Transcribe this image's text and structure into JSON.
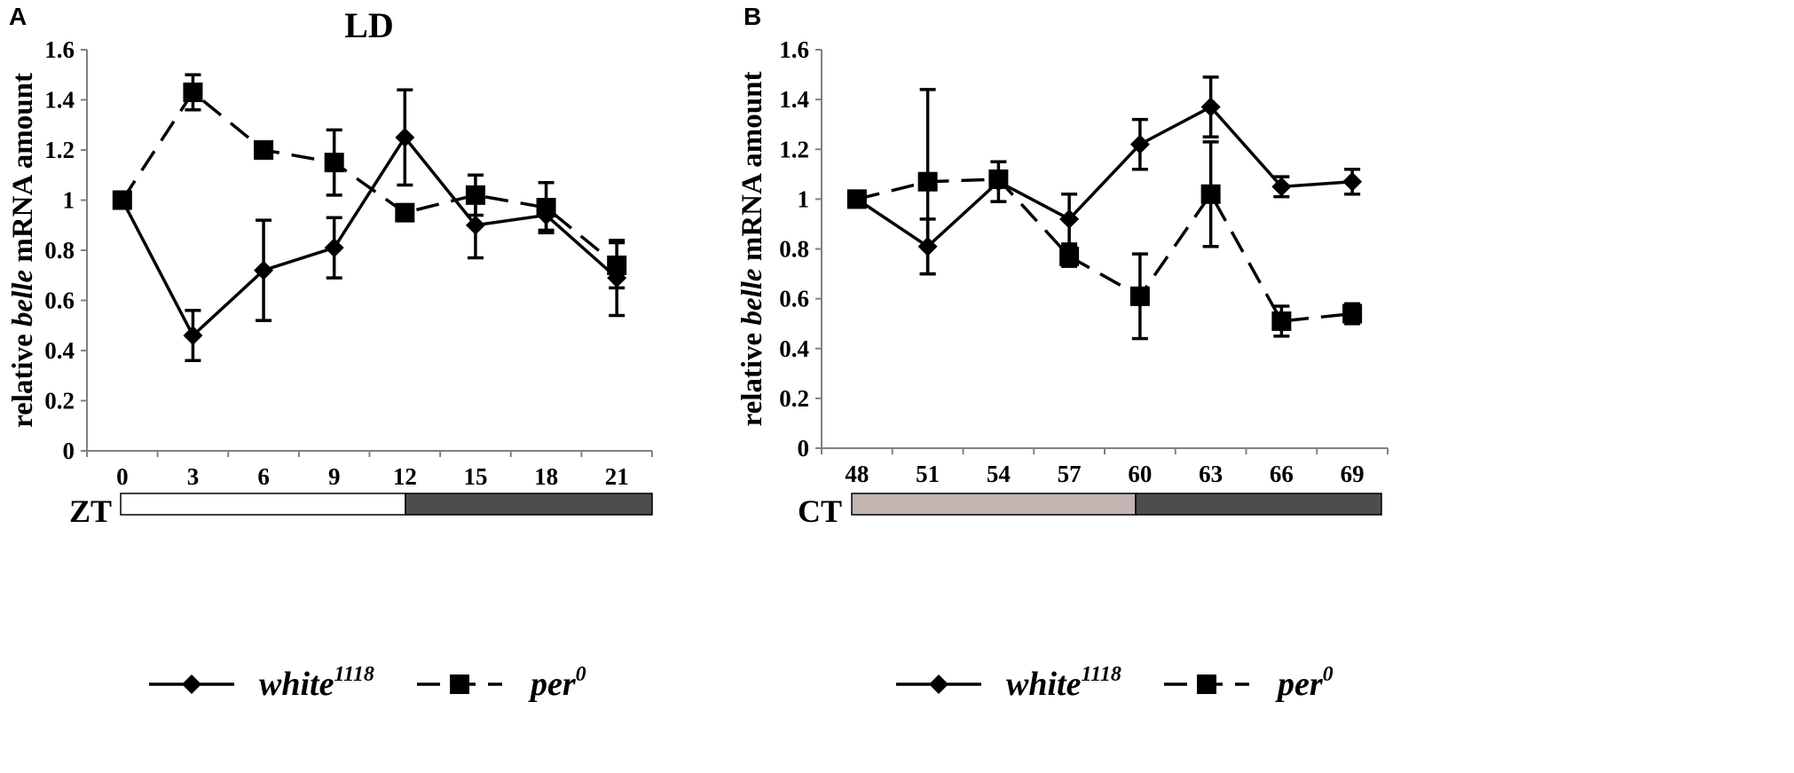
{
  "chart_data": [
    {
      "type": "line",
      "panel": "A",
      "title": "LD",
      "ylabel_parts": [
        "relative ",
        "belle",
        " mRNA amount"
      ],
      "categories": [
        "0",
        "3",
        "6",
        "9",
        "12",
        "15",
        "18",
        "21"
      ],
      "ylim": [
        0,
        1.6
      ],
      "yticks": [
        "0",
        "0.2",
        "0.4",
        "0.6",
        "0.8",
        "1",
        "1.2",
        "1.4",
        "1.6"
      ],
      "time_label": "ZT",
      "bar_colors": [
        "#ffffff",
        "#4d4d4d"
      ],
      "series": [
        {
          "name": "white",
          "sup": "1118",
          "marker": "diamond",
          "dash": "solid",
          "values": [
            1.0,
            0.46,
            0.72,
            0.81,
            1.25,
            0.9,
            0.94,
            0.69
          ],
          "errors": [
            0.0,
            0.1,
            0.2,
            0.12,
            0.19,
            0.13,
            0.06,
            0.15
          ]
        },
        {
          "name": "per",
          "sup": "0",
          "marker": "square",
          "dash": "dashed",
          "values": [
            1.0,
            1.43,
            1.2,
            1.15,
            0.95,
            1.02,
            0.97,
            0.74
          ],
          "errors": [
            0.0,
            0.07,
            0.0,
            0.13,
            0.03,
            0.08,
            0.1,
            0.09
          ]
        }
      ]
    },
    {
      "type": "line",
      "panel": "B",
      "title": "",
      "ylabel_parts": [
        "relative ",
        "belle",
        " mRNA amount"
      ],
      "categories": [
        "48",
        "51",
        "54",
        "57",
        "60",
        "63",
        "66",
        "69"
      ],
      "ylim": [
        0,
        1.6
      ],
      "yticks": [
        "0",
        "0.2",
        "0.4",
        "0.6",
        "0.8",
        "1",
        "1.2",
        "1.4",
        "1.6"
      ],
      "time_label": "CT",
      "bar_colors": [
        "#c4b4b2",
        "#4d4d4d"
      ],
      "series": [
        {
          "name": "white",
          "sup": "1118",
          "marker": "diamond",
          "dash": "solid",
          "values": [
            1.0,
            0.81,
            1.07,
            0.92,
            1.22,
            1.37,
            1.05,
            1.07
          ],
          "errors": [
            0.0,
            0.11,
            0.08,
            0.1,
            0.1,
            0.12,
            0.04,
            0.05
          ]
        },
        {
          "name": "per",
          "sup": "0",
          "marker": "square",
          "dash": "dashed",
          "values": [
            1.0,
            1.07,
            1.08,
            0.77,
            0.61,
            1.02,
            0.51,
            0.54
          ],
          "errors": [
            0.0,
            0.37,
            0.0,
            0.04,
            0.17,
            0.21,
            0.06,
            0.04
          ]
        }
      ]
    }
  ]
}
